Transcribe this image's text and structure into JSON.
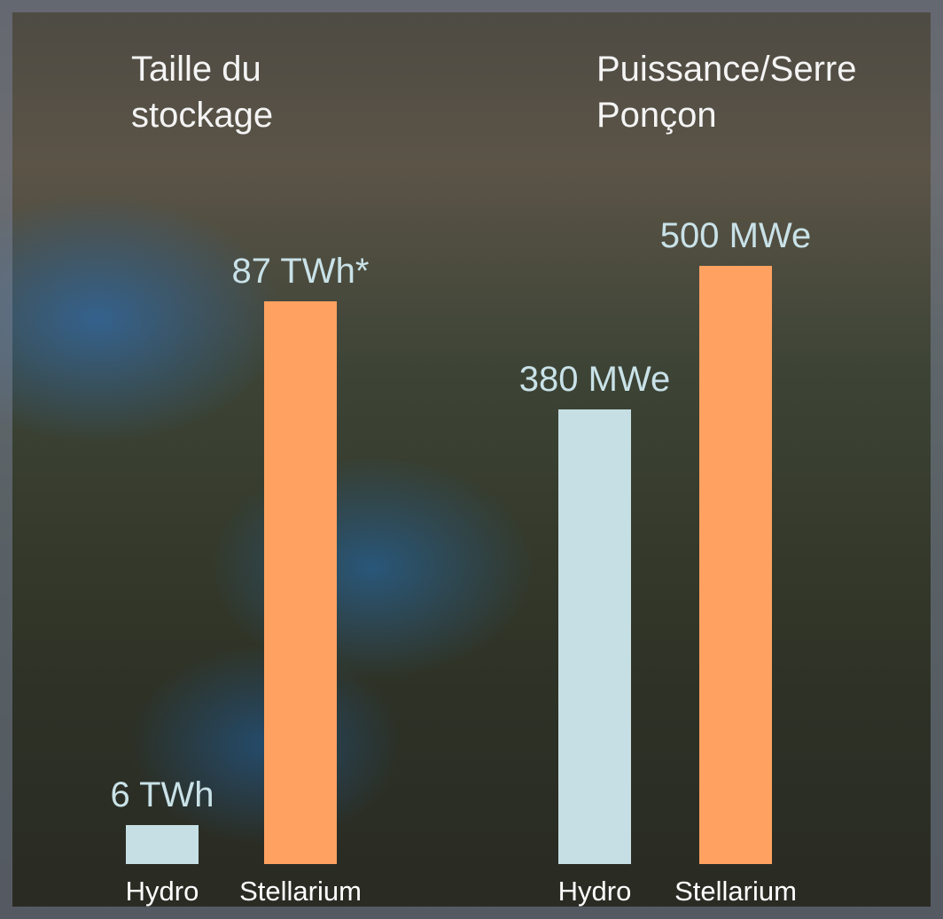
{
  "chart_data": [
    {
      "type": "bar",
      "title": "Taille du stockage",
      "categories": [
        "Hydro",
        "Stellarium"
      ],
      "values": [
        6,
        87
      ],
      "value_labels": [
        "6 TWh",
        "87 TWh*"
      ],
      "colors": [
        "#c6dfe4",
        "#ffa261"
      ]
    },
    {
      "type": "bar",
      "title": "Puissance/Serre Ponçon",
      "categories": [
        "Hydro",
        "Stellarium"
      ],
      "values": [
        380,
        500
      ],
      "value_labels": [
        "380 MWe",
        "500 MWe"
      ],
      "colors": [
        "#c6dfe4",
        "#ffa261"
      ]
    }
  ]
}
